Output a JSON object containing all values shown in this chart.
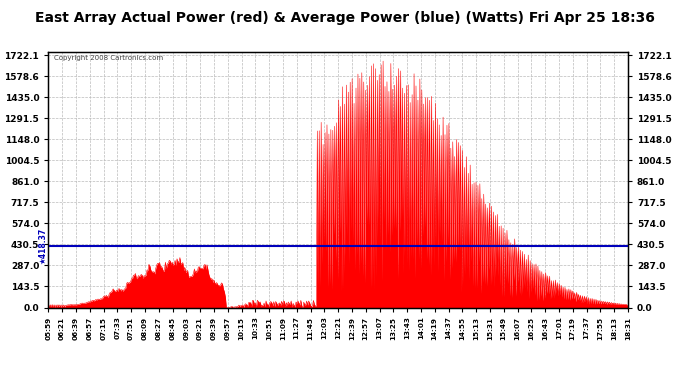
{
  "title": "East Array Actual Power (red) & Average Power (blue) (Watts) Fri Apr 25 18:36",
  "copyright": "Copyright 2008 Cartronics.com",
  "average_power": 418.37,
  "y_max": 1722.1,
  "y_min": 0.0,
  "y_ticks": [
    0.0,
    143.5,
    287.0,
    430.5,
    574.0,
    717.5,
    861.0,
    1004.5,
    1148.0,
    1291.5,
    1435.0,
    1578.6,
    1722.1
  ],
  "background_color": "#ffffff",
  "grid_color": "#bbbbbb",
  "fill_color": "#ff0000",
  "avg_line_color": "#0000bb",
  "title_fontsize": 10,
  "x_labels": [
    "05:59",
    "06:21",
    "06:39",
    "06:57",
    "07:15",
    "07:33",
    "07:51",
    "08:09",
    "08:27",
    "08:45",
    "09:03",
    "09:21",
    "09:39",
    "09:57",
    "10:15",
    "10:33",
    "10:51",
    "11:09",
    "11:27",
    "11:45",
    "12:03",
    "12:21",
    "12:39",
    "12:57",
    "13:07",
    "13:25",
    "13:43",
    "14:01",
    "14:19",
    "14:37",
    "14:55",
    "15:13",
    "15:31",
    "15:49",
    "16:07",
    "16:25",
    "16:43",
    "17:01",
    "17:19",
    "17:37",
    "17:55",
    "18:13",
    "18:31"
  ]
}
